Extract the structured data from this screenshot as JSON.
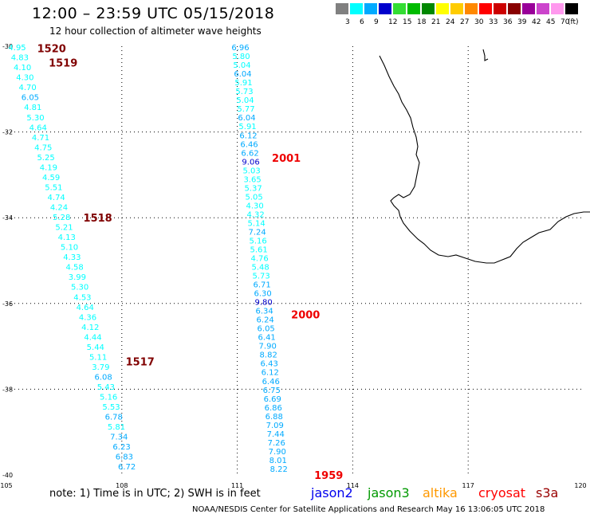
{
  "header": {
    "title": "12:00 – 23:59 UTC 05/15/2018",
    "subtitle": "12 hour collection of altimeter wave heights"
  },
  "legend": {
    "levels": [
      "3",
      "6",
      "9",
      "12",
      "15",
      "18",
      "21",
      "24",
      "27",
      "30",
      "33",
      "36",
      "39",
      "42",
      "45",
      "70"
    ],
    "unit": "(ft)",
    "colors": [
      "#808080",
      "#00ffff",
      "#00aaff",
      "#0000cc",
      "#33dd33",
      "#00bb00",
      "#008800",
      "#ffff00",
      "#ffcc00",
      "#ff8800",
      "#ff0000",
      "#cc0000",
      "#880000",
      "#990099",
      "#cc44cc",
      "#ff99ee",
      "#000000"
    ]
  },
  "axes": {
    "lon_labels": [
      "105",
      "108",
      "111",
      "114",
      "117",
      "120"
    ],
    "lat_labels": [
      "-30",
      "-32",
      "-34",
      "-36",
      "-38",
      "-40"
    ],
    "lon_range": [
      105,
      120
    ],
    "lat_range": [
      -40,
      -30
    ]
  },
  "tracks": [
    {
      "values": [
        "4.95",
        "4.83",
        "4.10",
        "4.30",
        "4.70",
        "6.05",
        "4.81",
        "5.30",
        "4.64",
        "4.71",
        "4.75",
        "5.25",
        "4.19",
        "4.59",
        "5.51",
        "4.74",
        "4.24",
        "5.28",
        "5.21",
        "4.13",
        "5.10",
        "4.33",
        "4.58",
        "3.99",
        "5.30",
        "4.53",
        "4.64",
        "4.36",
        "4.12",
        "4.44",
        "5.44",
        "5.11",
        "3.79",
        "6.08",
        "5.43",
        "5.16",
        "5.53",
        "6.78",
        "5.81",
        "7.34",
        "6.23",
        "6.83",
        "6.72"
      ],
      "pass_labels": [
        {
          "text": "1520",
          "lon": 105.8,
          "lat": -30.05,
          "color": "#800000"
        },
        {
          "text": "1519",
          "lon": 106.1,
          "lat": -30.38,
          "color": "#800000"
        },
        {
          "text": "1518",
          "lon": 107.0,
          "lat": -34.0,
          "color": "#800000"
        },
        {
          "text": "1517",
          "lon": 108.1,
          "lat": -37.35,
          "color": "#800000"
        }
      ]
    },
    {
      "values": [
        "6.96",
        "5.80",
        "5.04",
        "6.04",
        "5.91",
        "5.73",
        "5.04",
        "5.77",
        "6.04",
        "5.91",
        "6.12",
        "6.46",
        "6.62",
        "9.06",
        "5.03",
        "3.65",
        "5.37",
        "5.05",
        "4.30",
        "4.32",
        "5.14",
        "7.24",
        "5.16",
        "5.61",
        "4.76",
        "5.48",
        "5.73",
        "6.71",
        "6.30",
        "9.80",
        "6.34",
        "6.24",
        "6.05",
        "6.41",
        "7.90",
        "8.82",
        "6.43",
        "6.12",
        "6.46",
        "6.75",
        "6.69",
        "6.86",
        "6.88",
        "7.09",
        "7.44",
        "7.26",
        "7.90",
        "8.01",
        "8.22"
      ],
      "pass_labels": [
        {
          "text": "2001",
          "lon": 111.9,
          "lat": -32.6,
          "color": "#ee0000"
        },
        {
          "text": "2000",
          "lon": 112.4,
          "lat": -36.25,
          "color": "#ee0000"
        },
        {
          "text": "1959",
          "lon": 113.0,
          "lat": -40.0,
          "color": "#ee0000"
        }
      ]
    }
  ],
  "footer": {
    "note": "note:  1) Time is in UTC;  2) SWH is in feet",
    "satellites": [
      {
        "name": "jason2",
        "color": "#0000ee"
      },
      {
        "name": "jason3",
        "color": "#009900"
      },
      {
        "name": "altika",
        "color": "#ff9900"
      },
      {
        "name": "cryosat",
        "color": "#ff0000"
      },
      {
        "name": "s3a",
        "color": "#990000"
      }
    ],
    "credit": "NOAA/NESDIS Center for Satellite Applications and Research     May 16 13:06:05 UTC 2018"
  }
}
